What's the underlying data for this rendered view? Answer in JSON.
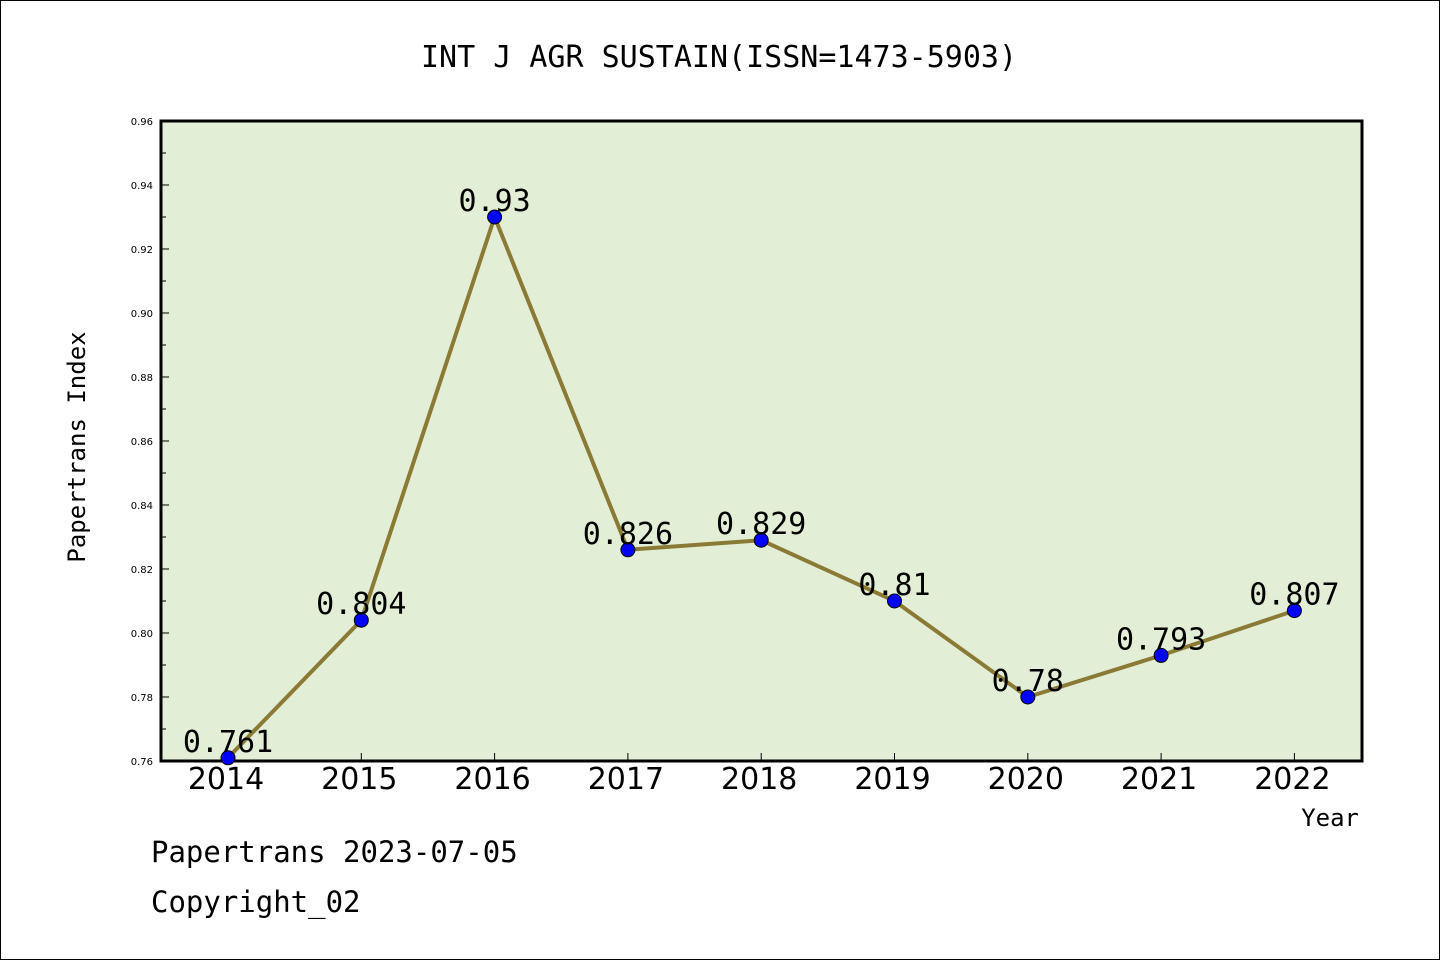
{
  "footer": {
    "source_line": "Papertrans 2023-07-05",
    "copyright_line": "Copyright_02"
  },
  "chart_data": {
    "type": "line",
    "title": "INT J AGR SUSTAIN(ISSN=1473-5903)",
    "xlabel": "Year",
    "ylabel": "Papertrans Index",
    "categories": [
      "2014",
      "2015",
      "2016",
      "2017",
      "2018",
      "2019",
      "2020",
      "2021",
      "2022"
    ],
    "series": [
      {
        "values": [
          0.761,
          0.804,
          0.93,
          0.826,
          0.829,
          0.81,
          0.78,
          0.793,
          0.807
        ],
        "data_labels": [
          "0.761",
          "0.804",
          "0.93",
          "0.826",
          "0.829",
          "0.81",
          "0.78",
          "0.793",
          "0.807"
        ]
      }
    ],
    "ylim": [
      0.76,
      0.96
    ],
    "yticks": [
      "0.76",
      "0.78",
      "0.80",
      "0.82",
      "0.84",
      "0.86",
      "0.88",
      "0.90",
      "0.92",
      "0.94",
      "0.96"
    ],
    "grid": false,
    "legend": "none",
    "colors": {
      "plot_background": "#e2efd6",
      "line": "#8b7a35",
      "marker": "#0000ff",
      "frame": "#000000"
    }
  }
}
